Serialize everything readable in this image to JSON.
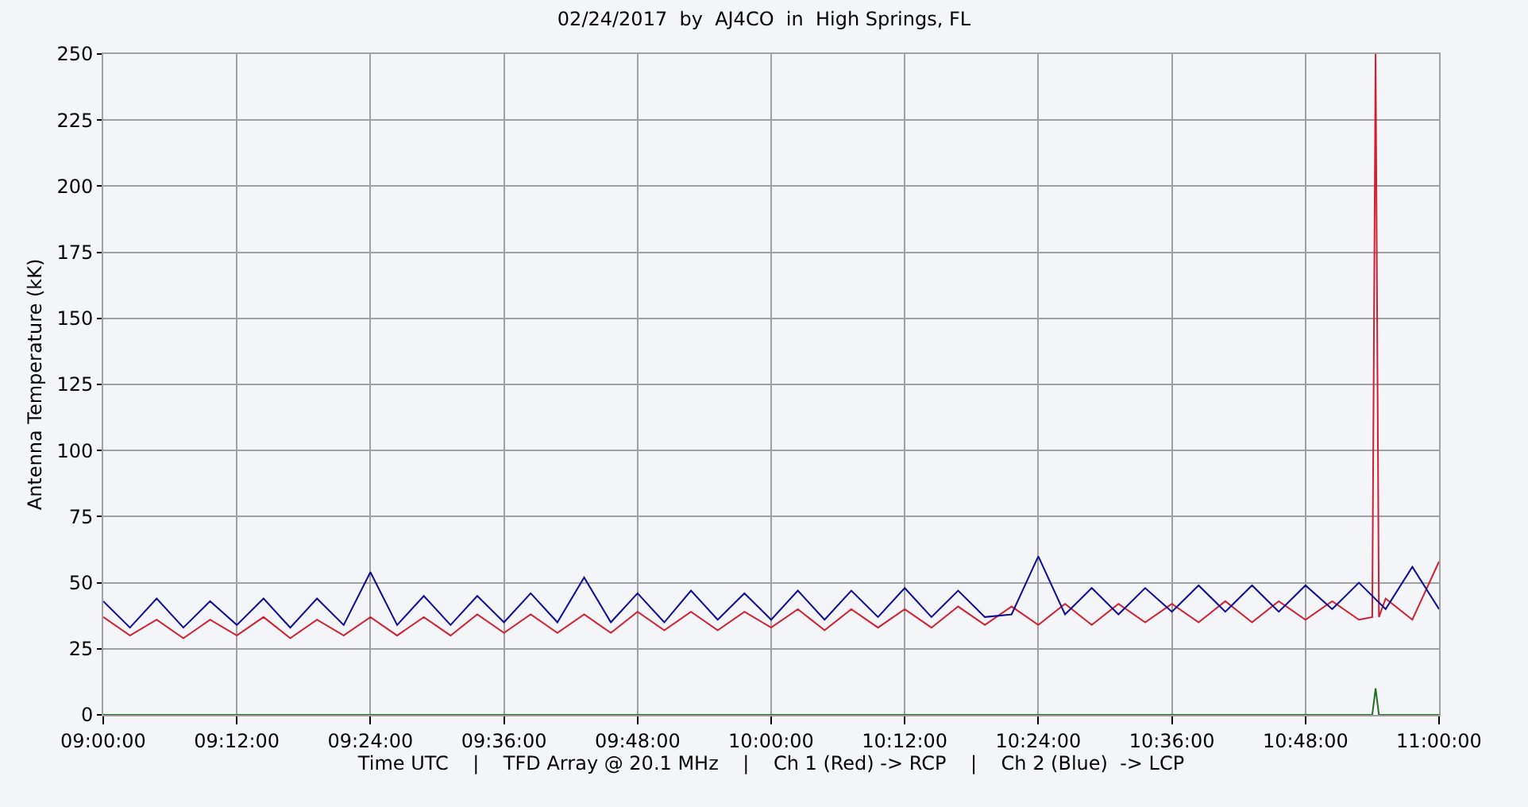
{
  "chart_data": {
    "type": "line",
    "title": "02/24/2017  by  AJ4CO  in  High Springs, FL",
    "xlabel": "Time UTC    |    TFD Array @ 20.1 MHz    |    Ch 1 (Red) -> RCP    |    Ch 2 (Blue)  -> LCP",
    "ylabel": "Antenna Temperature (kK)",
    "xlim": [
      9,
      11
    ],
    "xticks": [
      {
        "value": 9,
        "label": "09:00:00"
      },
      {
        "value": 9.2,
        "label": "09:12:00"
      },
      {
        "value": 9.4,
        "label": "09:24:00"
      },
      {
        "value": 9.6,
        "label": "09:36:00"
      },
      {
        "value": 9.8,
        "label": "09:48:00"
      },
      {
        "value": 10,
        "label": "10:00:00"
      },
      {
        "value": 10.2,
        "label": "10:12:00"
      },
      {
        "value": 10.4,
        "label": "10:24:00"
      },
      {
        "value": 10.6,
        "label": "10:36:00"
      },
      {
        "value": 10.8,
        "label": "10:48:00"
      },
      {
        "value": 11,
        "label": "11:00:00"
      }
    ],
    "ylim": [
      0,
      250
    ],
    "yticks": [
      0,
      25,
      50,
      75,
      100,
      125,
      150,
      175,
      200,
      225,
      250
    ],
    "grid": true,
    "legend": false,
    "marker": "none",
    "line_style": "solid",
    "series": [
      {
        "color": "#d02030",
        "x": [
          9.0,
          9.04,
          9.08,
          9.12,
          9.16,
          9.2,
          9.24,
          9.28,
          9.32,
          9.36,
          9.4,
          9.44,
          9.48,
          9.52,
          9.56,
          9.6,
          9.64,
          9.68,
          9.72,
          9.76,
          9.8,
          9.84,
          9.88,
          9.92,
          9.96,
          10.0,
          10.04,
          10.08,
          10.12,
          10.16,
          10.2,
          10.24,
          10.28,
          10.32,
          10.36,
          10.4,
          10.44,
          10.48,
          10.52,
          10.56,
          10.6,
          10.64,
          10.68,
          10.72,
          10.76,
          10.8,
          10.84,
          10.88,
          10.9,
          10.905,
          10.91,
          10.92,
          10.96,
          11.0
        ],
        "values": [
          37,
          30,
          36,
          29,
          36,
          30,
          37,
          29,
          36,
          30,
          37,
          30,
          37,
          30,
          38,
          31,
          38,
          31,
          38,
          31,
          39,
          32,
          39,
          32,
          39,
          33,
          40,
          32,
          40,
          33,
          40,
          33,
          41,
          34,
          41,
          34,
          42,
          34,
          42,
          35,
          42,
          35,
          43,
          35,
          43,
          36,
          43,
          36,
          37,
          250,
          37,
          44,
          36,
          58
        ]
      },
      {
        "color": "#0a0a96",
        "x": [
          9.0,
          9.04,
          9.08,
          9.12,
          9.16,
          9.2,
          9.24,
          9.28,
          9.32,
          9.36,
          9.4,
          9.44,
          9.48,
          9.52,
          9.56,
          9.6,
          9.64,
          9.68,
          9.72,
          9.76,
          9.8,
          9.84,
          9.88,
          9.92,
          9.96,
          10.0,
          10.04,
          10.08,
          10.12,
          10.16,
          10.2,
          10.24,
          10.28,
          10.32,
          10.36,
          10.4,
          10.44,
          10.48,
          10.52,
          10.56,
          10.6,
          10.64,
          10.68,
          10.72,
          10.76,
          10.8,
          10.84,
          10.88,
          10.92,
          10.96,
          11.0
        ],
        "values": [
          43,
          33,
          44,
          33,
          43,
          34,
          44,
          33,
          44,
          34,
          54,
          34,
          45,
          34,
          45,
          35,
          46,
          35,
          52,
          35,
          46,
          35,
          47,
          36,
          46,
          36,
          47,
          36,
          47,
          37,
          48,
          37,
          47,
          37,
          38,
          60,
          38,
          48,
          38,
          48,
          39,
          49,
          39,
          49,
          39,
          49,
          40,
          50,
          40,
          56,
          40
        ]
      },
      {
        "color": "#207020",
        "x": [
          9.0,
          10.9,
          10.905,
          10.91,
          11.0
        ],
        "values": [
          0,
          0,
          10,
          0,
          0
        ]
      }
    ]
  }
}
